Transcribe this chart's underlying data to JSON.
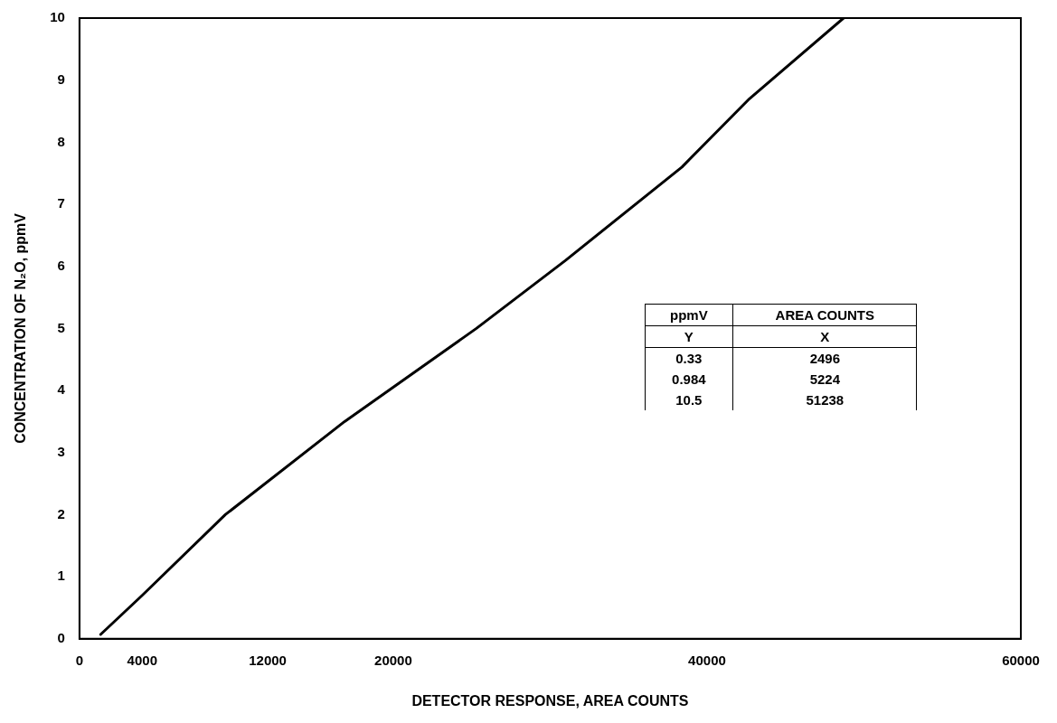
{
  "chart_data": {
    "type": "line",
    "xlabel": "DETECTOR RESPONSE, AREA COUNTS",
    "ylabel": "CONCENTRATION OF N₂O, ppmV",
    "series": [
      {
        "color": "#000000",
        "x": [
          1350,
          4000,
          9300,
          16900,
          25300,
          31000,
          38400,
          42700,
          48700
        ],
        "values": [
          0.07,
          0.7,
          2,
          3.5,
          5,
          6.1,
          7.6,
          8.7,
          10
        ]
      }
    ],
    "xlim": [
      0,
      60000
    ],
    "xticks": [
      0,
      4000,
      12000,
      20000,
      40000,
      60000
    ],
    "ylim": [
      0,
      10
    ],
    "yticks": [
      0,
      1,
      2,
      3,
      4,
      5,
      6,
      7,
      8,
      9,
      10
    ],
    "grid": false,
    "legend": false,
    "marker": "none",
    "line_style": "solid",
    "annotations": [
      "ppmV",
      "AREA COUNTS",
      "Y",
      "X",
      "0.33",
      "2496",
      "0.984",
      "5224",
      "10.5",
      "51238"
    ]
  }
}
